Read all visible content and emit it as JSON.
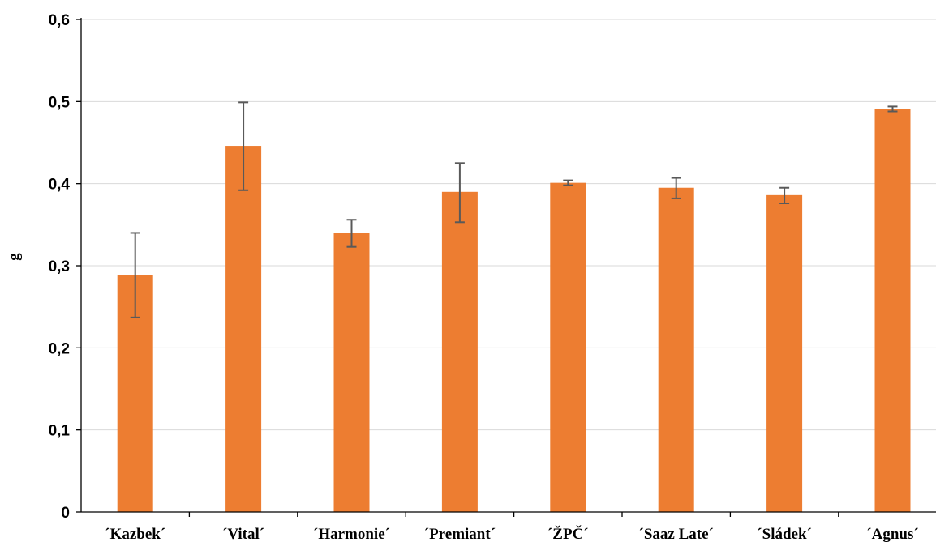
{
  "chart_data": {
    "type": "bar",
    "title": "",
    "xlabel": "",
    "ylabel": "g",
    "ylim": [
      0,
      0.6
    ],
    "yticks": [
      0,
      0.1,
      0.2,
      0.3,
      0.4,
      0.5,
      0.6
    ],
    "ytick_labels": [
      "0",
      "0,1",
      "0,2",
      "0,3",
      "0,4",
      "0,5",
      "0,6"
    ],
    "grid": "horizontal",
    "categories": [
      "´Kazbek´",
      "´Vital´",
      "´Harmonie´",
      "´Premiant´",
      "´ŽPČ´",
      "´Saaz Late´",
      "´Sládek´",
      "´Agnus´"
    ],
    "series": [
      {
        "values": [
          0.289,
          0.446,
          0.34,
          0.39,
          0.401,
          0.395,
          0.386,
          0.491
        ],
        "error_low": [
          0.237,
          0.392,
          0.323,
          0.353,
          0.398,
          0.382,
          0.376,
          0.488
        ],
        "error_high": [
          0.34,
          0.499,
          0.356,
          0.425,
          0.404,
          0.407,
          0.395,
          0.494
        ],
        "color": "#ED7D31"
      }
    ],
    "colors": {
      "bar": "#ED7D31",
      "error_bar": "#595959",
      "grid": "#D9D9D9",
      "axis": "#000000"
    }
  }
}
